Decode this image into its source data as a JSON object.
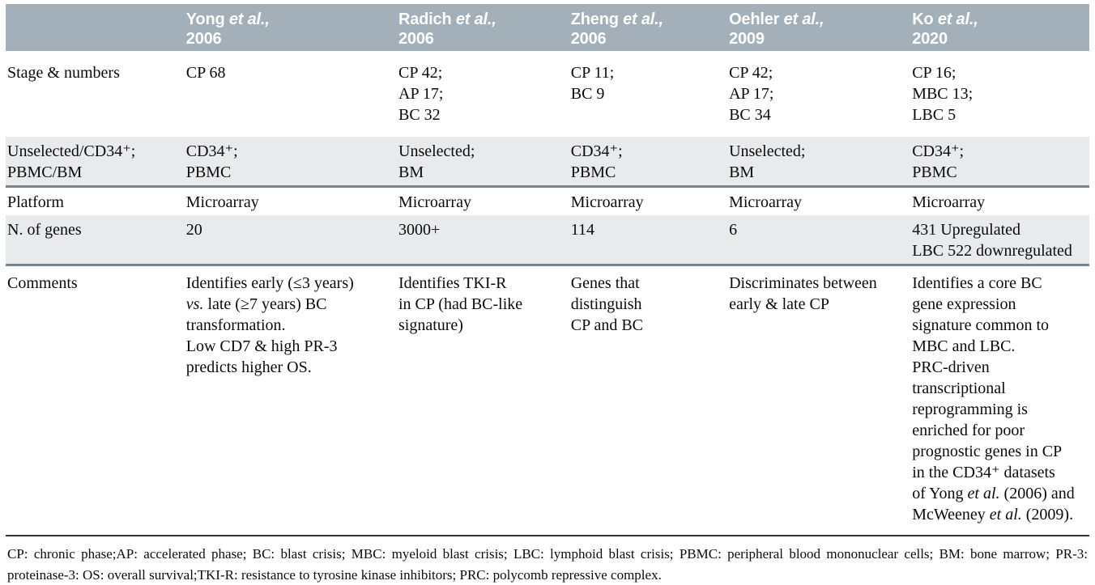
{
  "header": {
    "studies": [
      {
        "author": "Yong",
        "etal": "et al.,",
        "year": "2006"
      },
      {
        "author": "Radich",
        "etal": "et al.,",
        "year": "2006"
      },
      {
        "author": "Zheng",
        "etal": "et al.,",
        "year": "2006"
      },
      {
        "author": "Oehler",
        "etal": "et al.,",
        "year": "2009"
      },
      {
        "author": "Ko",
        "etal": "et al.,",
        "year": "2020"
      }
    ]
  },
  "rows": {
    "stage": {
      "label": "Stage & numbers",
      "cells": [
        [
          "CP 68"
        ],
        [
          "CP 42;",
          "AP 17;",
          "BC 32"
        ],
        [
          "CP 11;",
          "BC 9"
        ],
        [
          "CP 42;",
          "AP 17;",
          "BC 34"
        ],
        [
          "CP 16;",
          "MBC 13;",
          "LBC 5"
        ]
      ]
    },
    "selection": {
      "label": [
        "Unselected/CD34⁺;",
        "PBMC/BM"
      ],
      "cells": [
        [
          "CD34⁺;",
          "PBMC"
        ],
        [
          "Unselected;",
          "BM"
        ],
        [
          "CD34⁺;",
          "PBMC"
        ],
        [
          "Unselected;",
          "BM"
        ],
        [
          "CD34⁺;",
          "PBMC"
        ]
      ]
    },
    "platform": {
      "label": "Platform",
      "cells": [
        [
          "Microarray"
        ],
        [
          "Microarray"
        ],
        [
          "Microarray"
        ],
        [
          "Microarray"
        ],
        [
          "Microarray"
        ]
      ]
    },
    "genes": {
      "label": "N. of genes",
      "cells": [
        [
          "20"
        ],
        [
          "3000+"
        ],
        [
          "114"
        ],
        [
          "6"
        ],
        [
          "431 Upregulated",
          "LBC 522 downregulated"
        ]
      ]
    },
    "comments": {
      "label": "Comments",
      "yong": {
        "l1": "Identifies early (≤3 years)",
        "l2_italic": "vs.",
        "l2_rest": " late (≥7 years) BC",
        "l3": "transformation.",
        "l4": "Low CD7 & high PR-3",
        "l5": "predicts higher OS."
      },
      "radich": [
        "Identifies TKI-R",
        "in CP (had BC-like",
        "signature)"
      ],
      "zheng": [
        "Genes that",
        "distinguish",
        "CP and BC"
      ],
      "oehler": [
        "Discriminates between",
        "early & late CP"
      ],
      "ko": {
        "lines": [
          "Identifies a core BC",
          "gene expression",
          "signature common to",
          "MBC and LBC.",
          "PRC-driven",
          "transcriptional",
          "reprogramming is",
          "enriched for poor",
          "prognostic genes in CP",
          "in the CD34⁺ datasets"
        ],
        "l11_pre": "of Yong ",
        "l11_italic": "et al.",
        "l11_post": " (2006) and",
        "l12_pre": "McWeeney ",
        "l12_italic": "et al.",
        "l12_post": " (2009)."
      }
    }
  },
  "footnote": {
    "line1": "CP: chronic phase;AP: accelerated phase; BC: blast crisis; MBC: myeloid blast crisis; LBC: lymphoid blast crisis; PBMC: peripheral blood mononuclear cells; BM: bone marrow; PR-",
    "line2": "3: proteinase-3: OS: overall survival;TKI-R: resistance to tyrosine kinase inhibitors; PRC: polycomb repressive complex."
  },
  "colors": {
    "header_bg": "#a3afb9",
    "band_bg": "#e8eaec",
    "separator": "#76848f",
    "footnote_rule": "#2b3338",
    "header_text": "#ffffff",
    "body_text": "#0b0b0b"
  }
}
